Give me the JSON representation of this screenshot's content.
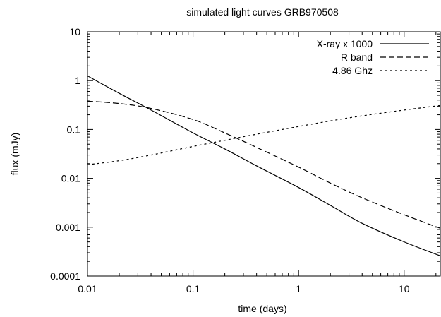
{
  "chart_data": {
    "type": "line",
    "title": "simulated light curves GRB970508",
    "xlabel": "time (days)",
    "ylabel": "flux (mJy)",
    "x_scale": "log",
    "y_scale": "log",
    "xlim": [
      0.01,
      22
    ],
    "ylim": [
      0.0001,
      10
    ],
    "grid": false,
    "legend_position": "top-right",
    "x_ticks": [
      {
        "value": 0.01,
        "label": "0.01"
      },
      {
        "value": 0.1,
        "label": "0.1"
      },
      {
        "value": 1,
        "label": "1"
      },
      {
        "value": 10,
        "label": "10"
      }
    ],
    "y_ticks": [
      {
        "value": 0.0001,
        "label": "0.0001"
      },
      {
        "value": 0.001,
        "label": "0.001"
      },
      {
        "value": 0.01,
        "label": "0.01"
      },
      {
        "value": 0.1,
        "label": "0.1"
      },
      {
        "value": 1,
        "label": "1"
      },
      {
        "value": 10,
        "label": "10"
      }
    ],
    "series": [
      {
        "name": "X-ray x 1000",
        "dash": "solid",
        "color": "#000000",
        "x": [
          0.01,
          0.02,
          0.04,
          0.1,
          0.2,
          0.4,
          1,
          2,
          4,
          10,
          22
        ],
        "y": [
          1.25,
          0.55,
          0.25,
          0.085,
          0.04,
          0.018,
          0.0065,
          0.0028,
          0.0012,
          0.0005,
          0.00026
        ]
      },
      {
        "name": "R band",
        "dash": "long-dash",
        "color": "#000000",
        "x": [
          0.01,
          0.02,
          0.04,
          0.1,
          0.2,
          0.4,
          1,
          2,
          4,
          10,
          22
        ],
        "y": [
          0.38,
          0.34,
          0.27,
          0.16,
          0.085,
          0.043,
          0.017,
          0.008,
          0.004,
          0.0018,
          0.00095
        ]
      },
      {
        "name": "4.86 Ghz",
        "dash": "short-dash",
        "color": "#000000",
        "x": [
          0.01,
          0.02,
          0.04,
          0.1,
          0.2,
          0.4,
          1,
          2,
          4,
          10,
          22
        ],
        "y": [
          0.019,
          0.023,
          0.03,
          0.045,
          0.06,
          0.08,
          0.115,
          0.15,
          0.19,
          0.25,
          0.31
        ]
      }
    ]
  }
}
